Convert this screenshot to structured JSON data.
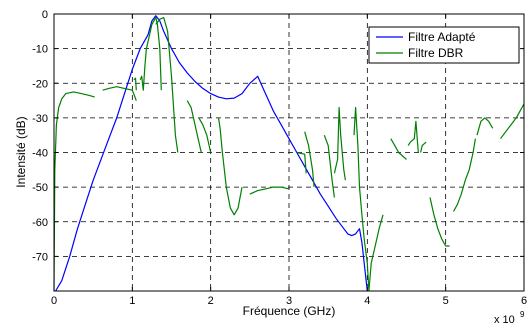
{
  "chart_data": {
    "type": "line",
    "title": "",
    "xlabel": "Fréquence (GHz)",
    "ylabel": "Intensité (dB)",
    "x_multiplier_label": "x 10",
    "x_multiplier_exponent": "9",
    "xlim": [
      0,
      6
    ],
    "ylim": [
      -80,
      0
    ],
    "x_ticks": [
      0,
      1,
      2,
      3,
      4,
      5,
      6
    ],
    "y_ticks": [
      0,
      -10,
      -20,
      -30,
      -40,
      -50,
      -60,
      -70
    ],
    "grid": true,
    "grid_style": "dashed",
    "legend_position": "top-right",
    "series": [
      {
        "name": "Filtre Adapté",
        "color": "#0000ff",
        "segments": [
          [
            [
              0.02,
              -80
            ],
            [
              0.1,
              -77
            ],
            [
              0.2,
              -70
            ],
            [
              0.3,
              -62
            ],
            [
              0.4,
              -55
            ],
            [
              0.5,
              -48
            ],
            [
              0.6,
              -42
            ],
            [
              0.7,
              -36
            ],
            [
              0.8,
              -30
            ],
            [
              0.9,
              -23
            ],
            [
              1.0,
              -16
            ],
            [
              1.1,
              -10
            ],
            [
              1.15,
              -8
            ],
            [
              1.2,
              -6
            ],
            [
              1.25,
              -2
            ],
            [
              1.3,
              -0.5
            ],
            [
              1.35,
              -2
            ],
            [
              1.4,
              -5
            ],
            [
              1.5,
              -10
            ],
            [
              1.6,
              -14
            ],
            [
              1.7,
              -17
            ],
            [
              1.8,
              -19.5
            ],
            [
              1.9,
              -21.5
            ],
            [
              2.0,
              -23
            ],
            [
              2.1,
              -24
            ],
            [
              2.2,
              -24.5
            ],
            [
              2.3,
              -24.3
            ],
            [
              2.4,
              -23
            ],
            [
              2.5,
              -20
            ],
            [
              2.55,
              -19
            ],
            [
              2.6,
              -18
            ],
            [
              2.65,
              -20.5
            ],
            [
              2.7,
              -23
            ],
            [
              2.8,
              -28
            ],
            [
              2.9,
              -32
            ],
            [
              3.0,
              -36
            ],
            [
              3.1,
              -40
            ],
            [
              3.2,
              -44
            ],
            [
              3.3,
              -48
            ],
            [
              3.4,
              -52
            ],
            [
              3.5,
              -55.5
            ],
            [
              3.6,
              -59
            ],
            [
              3.7,
              -62
            ],
            [
              3.75,
              -63.5
            ],
            [
              3.8,
              -64
            ],
            [
              3.85,
              -63.5
            ],
            [
              3.9,
              -62
            ],
            [
              3.93,
              -66
            ],
            [
              3.96,
              -72
            ],
            [
              4.0,
              -80
            ]
          ]
        ]
      },
      {
        "name": "Filtre DBR",
        "color": "#008000",
        "segments": [
          [
            [
              0.0,
              -80
            ],
            [
              0.01,
              -45
            ],
            [
              0.03,
              -32
            ],
            [
              0.06,
              -27
            ],
            [
              0.1,
              -24.5
            ],
            [
              0.15,
              -23
            ],
            [
              0.25,
              -22.5
            ],
            [
              0.35,
              -23
            ],
            [
              0.45,
              -23.5
            ],
            [
              0.52,
              -24
            ]
          ],
          [
            [
              0.62,
              -22
            ],
            [
              0.7,
              -21.5
            ],
            [
              0.8,
              -21
            ],
            [
              0.9,
              -21.5
            ],
            [
              1.0,
              -22
            ],
            [
              1.05,
              -25
            ]
          ],
          [
            [
              1.02,
              -19
            ],
            [
              1.04,
              -18.5
            ],
            [
              1.05,
              -22
            ]
          ],
          [
            [
              1.1,
              -19
            ],
            [
              1.12,
              -18
            ],
            [
              1.14,
              -22
            ],
            [
              1.16,
              -15
            ],
            [
              1.18,
              -10
            ],
            [
              1.2,
              -8
            ],
            [
              1.25,
              -3
            ],
            [
              1.3,
              -1
            ],
            [
              1.32,
              -3
            ],
            [
              1.35,
              -10
            ],
            [
              1.37,
              -22
            ]
          ],
          [
            [
              1.3,
              -3
            ],
            [
              1.35,
              -1.5
            ],
            [
              1.4,
              -1
            ],
            [
              1.45,
              -5
            ],
            [
              1.5,
              -18
            ],
            [
              1.55,
              -35
            ],
            [
              1.58,
              -40
            ]
          ],
          [
            [
              1.7,
              -25
            ],
            [
              1.75,
              -27
            ],
            [
              1.8,
              -32
            ],
            [
              1.85,
              -37
            ],
            [
              1.88,
              -40
            ]
          ],
          [
            [
              1.85,
              -30
            ],
            [
              1.9,
              -32
            ],
            [
              1.95,
              -35
            ],
            [
              2.0,
              -40
            ]
          ],
          [
            [
              2.1,
              -30
            ],
            [
              2.12,
              -33
            ],
            [
              2.15,
              -40
            ],
            [
              2.2,
              -50
            ],
            [
              2.25,
              -56
            ],
            [
              2.3,
              -58
            ],
            [
              2.35,
              -56
            ],
            [
              2.4,
              -50
            ]
          ],
          [
            [
              2.5,
              -52
            ],
            [
              2.6,
              -51
            ],
            [
              2.7,
              -50.5
            ],
            [
              2.8,
              -50
            ],
            [
              2.9,
              -50
            ],
            [
              3.0,
              -50.5
            ]
          ],
          [
            [
              3.1,
              -40
            ],
            [
              3.2,
              -40.5
            ],
            [
              3.22,
              -46
            ]
          ],
          [
            [
              3.2,
              -34
            ],
            [
              3.25,
              -38
            ],
            [
              3.3,
              -45
            ],
            [
              3.32,
              -50
            ]
          ],
          [
            [
              3.45,
              -35
            ],
            [
              3.5,
              -38
            ],
            [
              3.55,
              -48
            ],
            [
              3.58,
              -53
            ]
          ],
          [
            [
              3.58,
              -46
            ],
            [
              3.62,
              -42
            ],
            [
              3.64,
              -27
            ],
            [
              3.66,
              -35
            ],
            [
              3.7,
              -45
            ],
            [
              3.72,
              -48
            ]
          ],
          [
            [
              3.83,
              -35
            ],
            [
              3.85,
              -27
            ],
            [
              3.88,
              -38
            ],
            [
              3.9,
              -50
            ],
            [
              3.93,
              -58
            ],
            [
              3.96,
              -65
            ],
            [
              4.0,
              -72
            ],
            [
              4.02,
              -80
            ]
          ],
          [
            [
              4.02,
              -80
            ],
            [
              4.05,
              -72
            ],
            [
              4.1,
              -67
            ],
            [
              4.15,
              -62
            ],
            [
              4.2,
              -58
            ]
          ],
          [
            [
              4.3,
              -36
            ],
            [
              4.35,
              -38
            ],
            [
              4.4,
              -40
            ],
            [
              4.45,
              -41
            ],
            [
              4.5,
              -42
            ]
          ],
          [
            [
              4.52,
              -38
            ],
            [
              4.55,
              -37
            ],
            [
              4.6,
              -36
            ],
            [
              4.62,
              -31
            ],
            [
              4.65,
              -40
            ]
          ],
          [
            [
              4.68,
              -40
            ],
            [
              4.7,
              -38
            ],
            [
              4.75,
              -37
            ]
          ],
          [
            [
              4.8,
              -53
            ],
            [
              4.85,
              -58
            ],
            [
              4.9,
              -62
            ],
            [
              4.95,
              -65
            ],
            [
              5.0,
              -67
            ],
            [
              5.05,
              -67
            ]
          ],
          [
            [
              5.1,
              -57
            ],
            [
              5.15,
              -55
            ],
            [
              5.2,
              -52
            ],
            [
              5.25,
              -48
            ],
            [
              5.3,
              -45
            ],
            [
              5.35,
              -40
            ],
            [
              5.38,
              -36
            ]
          ],
          [
            [
              5.4,
              -35
            ],
            [
              5.45,
              -31
            ],
            [
              5.5,
              -30
            ],
            [
              5.55,
              -31
            ],
            [
              5.6,
              -33
            ]
          ],
          [
            [
              5.7,
              -36
            ],
            [
              5.8,
              -33
            ],
            [
              5.9,
              -30
            ],
            [
              5.95,
              -28
            ],
            [
              6.0,
              -26
            ]
          ]
        ]
      }
    ]
  }
}
